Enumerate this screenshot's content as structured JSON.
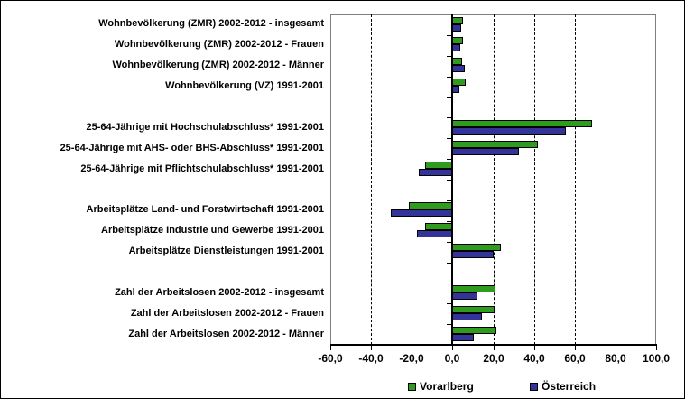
{
  "chart_data": {
    "type": "bar",
    "orientation": "horizontal",
    "title": "",
    "xlabel": "",
    "ylabel": "",
    "xlim": [
      -60,
      100
    ],
    "x_tick_values": [
      -60,
      -40,
      -20,
      0,
      20,
      40,
      60,
      80,
      100
    ],
    "x_tick_labels": [
      "-60,0",
      "-40,0",
      "-20,0",
      "0,0",
      "20,0",
      "40,0",
      "60,0",
      "80,0",
      "100,0"
    ],
    "grid": "vertical-dashed-every-20",
    "legend_position": "bottom",
    "categories": [
      {
        "label": "Wohnbevölkerung (ZMR) 2002-2012 - insgesamt",
        "group": 0
      },
      {
        "label": "Wohnbevölkerung (ZMR) 2002-2012 - Frauen",
        "group": 0
      },
      {
        "label": "Wohnbevölkerung (ZMR) 2002-2012 - Männer",
        "group": 0
      },
      {
        "label": "Wohnbevölkerung (VZ) 1991-2001",
        "group": 0
      },
      {
        "label": "25-64-Jährige mit Hochschulabschluss* 1991-2001",
        "group": 1
      },
      {
        "label": "25-64-Jährige mit AHS- oder BHS-Abschluss* 1991-2001",
        "group": 1
      },
      {
        "label": "25-64-Jährige mit Pflichtschulabschluss* 1991-2001",
        "group": 1
      },
      {
        "label": "Arbeitsplätze Land- und Forstwirtschaft 1991-2001",
        "group": 2
      },
      {
        "label": "Arbeitsplätze Industrie und Gewerbe 1991-2001",
        "group": 2
      },
      {
        "label": "Arbeitsplätze Dienstleistungen 1991-2001",
        "group": 2
      },
      {
        "label": "Zahl der Arbeitslosen 2002-2012 - insgesamt",
        "group": 3
      },
      {
        "label": "Zahl der Arbeitslosen 2002-2012 - Frauen",
        "group": 3
      },
      {
        "label": "Zahl der Arbeitslosen 2002-2012 - Männer",
        "group": 3
      }
    ],
    "series": [
      {
        "name": "Vorarlberg",
        "color": "#2f9b1f",
        "values": [
          5.4,
          5.5,
          4.9,
          6.6,
          68.5,
          42.0,
          -13.3,
          -21.2,
          -13.3,
          24.0,
          21.4,
          20.9,
          21.8
        ]
      },
      {
        "name": "Österreich",
        "color": "#333399",
        "values": [
          4.6,
          4.1,
          6.0,
          3.4,
          56.0,
          33.0,
          -16.2,
          -30.2,
          -17.2,
          20.2,
          12.5,
          14.7,
          10.8
        ]
      }
    ]
  }
}
